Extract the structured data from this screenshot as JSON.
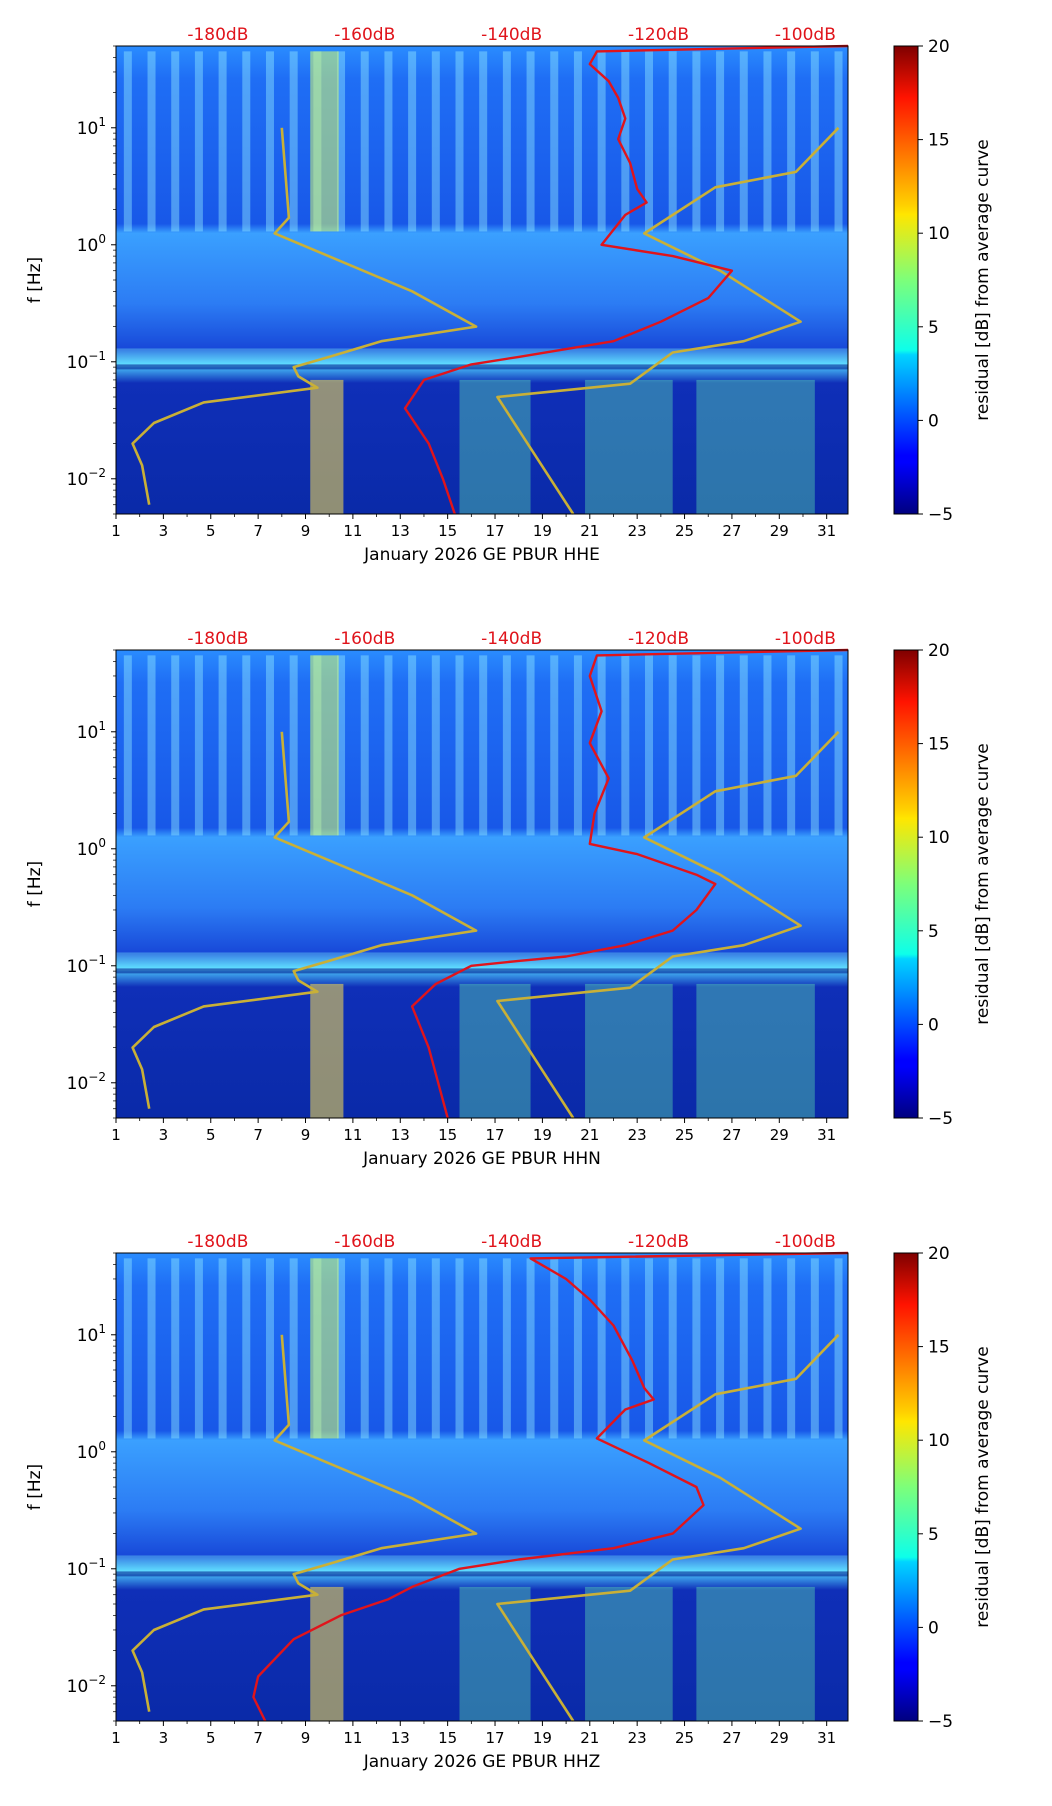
{
  "chart_data": [
    {
      "type": "heatmap",
      "title": "",
      "xlabel": "January 2026 GE PBUR  HHE",
      "ylabel": "f [Hz]",
      "x_ticks": [
        "1",
        "3",
        "5",
        "7",
        "9",
        "11",
        "13",
        "15",
        "17",
        "19",
        "21",
        "23",
        "25",
        "27",
        "29",
        "31"
      ],
      "x_range": [
        1,
        31.9
      ],
      "y_scale": "log",
      "y_range": [
        0.005,
        50
      ],
      "y_ticks": [
        {
          "value": 0.01,
          "base": "10",
          "exp": "−2"
        },
        {
          "value": 0.1,
          "base": "10",
          "exp": "−1"
        },
        {
          "value": 1,
          "base": "10",
          "exp": "0"
        },
        {
          "value": 10,
          "base": "10",
          "exp": "1"
        }
      ],
      "top_labels": [
        "-180dB",
        "-160dB",
        "-140dB",
        "-120dB",
        "-100dB"
      ],
      "top_label_days": [
        5.3,
        11.5,
        17.7,
        23.9,
        30.1
      ],
      "colorbar": {
        "label": "residual [dB] from average curve",
        "ticks": [
          "20",
          "15",
          "10",
          "5",
          "0",
          "−5"
        ],
        "range": [
          -5,
          20
        ]
      },
      "series": [
        {
          "name": "noise-model-curve",
          "color": "#c9b037",
          "points": [
            [
              8.0,
              10
            ],
            [
              8.3,
              1.7
            ],
            [
              7.7,
              1.25
            ],
            [
              13.5,
              0.4
            ],
            [
              16.2,
              0.2
            ],
            [
              12.2,
              0.15
            ],
            [
              10.0,
              0.11
            ],
            [
              8.5,
              0.09
            ],
            [
              8.7,
              0.075
            ],
            [
              9.5,
              0.06
            ],
            [
              4.7,
              0.045
            ],
            [
              2.6,
              0.03
            ],
            [
              1.7,
              0.02
            ],
            [
              2.1,
              0.013
            ],
            [
              2.4,
              0.006
            ]
          ]
        },
        {
          "name": "noise-model-curve-2",
          "color": "#c9b037",
          "points": [
            [
              31.5,
              10
            ],
            [
              29.7,
              4.2
            ],
            [
              26.3,
              3.1
            ],
            [
              23.3,
              1.25
            ],
            [
              26.5,
              0.6
            ],
            [
              29.9,
              0.22
            ],
            [
              27.5,
              0.15
            ],
            [
              24.5,
              0.12
            ],
            [
              22.7,
              0.065
            ],
            [
              17.1,
              0.05
            ],
            [
              20.3,
              0.005
            ]
          ]
        },
        {
          "name": "median-psd-curve",
          "color": "#e0141b",
          "points": [
            [
              31.9,
              50
            ],
            [
              21.3,
              45
            ],
            [
              21.0,
              35
            ],
            [
              21.8,
              25
            ],
            [
              22.2,
              18
            ],
            [
              22.5,
              12
            ],
            [
              22.2,
              8
            ],
            [
              22.7,
              5
            ],
            [
              23.0,
              3
            ],
            [
              23.4,
              2.3
            ],
            [
              22.5,
              1.8
            ],
            [
              21.5,
              1.0
            ],
            [
              24.5,
              0.8
            ],
            [
              27.0,
              0.6
            ],
            [
              26.0,
              0.35
            ],
            [
              24.0,
              0.22
            ],
            [
              22.0,
              0.15
            ],
            [
              18.0,
              0.11
            ],
            [
              16.0,
              0.095
            ],
            [
              14.0,
              0.07
            ],
            [
              13.2,
              0.04
            ],
            [
              14.2,
              0.02
            ],
            [
              14.8,
              0.01
            ],
            [
              15.3,
              0.005
            ]
          ]
        }
      ]
    },
    {
      "type": "heatmap",
      "title": "",
      "xlabel": "January 2026 GE PBUR  HHN",
      "ylabel": "f [Hz]",
      "x_ticks": [
        "1",
        "3",
        "5",
        "7",
        "9",
        "11",
        "13",
        "15",
        "17",
        "19",
        "21",
        "23",
        "25",
        "27",
        "29",
        "31"
      ],
      "x_range": [
        1,
        31.9
      ],
      "y_scale": "log",
      "y_range": [
        0.005,
        50
      ],
      "y_ticks": [
        {
          "value": 0.01,
          "base": "10",
          "exp": "−2"
        },
        {
          "value": 0.1,
          "base": "10",
          "exp": "−1"
        },
        {
          "value": 1,
          "base": "10",
          "exp": "0"
        },
        {
          "value": 10,
          "base": "10",
          "exp": "1"
        }
      ],
      "top_labels": [
        "-180dB",
        "-160dB",
        "-140dB",
        "-120dB",
        "-100dB"
      ],
      "top_label_days": [
        5.3,
        11.5,
        17.7,
        23.9,
        30.1
      ],
      "colorbar": {
        "label": "residual [dB] from average curve",
        "ticks": [
          "20",
          "15",
          "10",
          "5",
          "0",
          "−5"
        ],
        "range": [
          -5,
          20
        ]
      },
      "series": [
        {
          "name": "noise-model-curve",
          "color": "#c9b037",
          "points": [
            [
              8.0,
              10
            ],
            [
              8.3,
              1.7
            ],
            [
              7.7,
              1.25
            ],
            [
              13.5,
              0.4
            ],
            [
              16.2,
              0.2
            ],
            [
              12.2,
              0.15
            ],
            [
              10.0,
              0.11
            ],
            [
              8.5,
              0.09
            ],
            [
              8.7,
              0.075
            ],
            [
              9.5,
              0.06
            ],
            [
              4.7,
              0.045
            ],
            [
              2.6,
              0.03
            ],
            [
              1.7,
              0.02
            ],
            [
              2.1,
              0.013
            ],
            [
              2.4,
              0.006
            ]
          ]
        },
        {
          "name": "noise-model-curve-2",
          "color": "#c9b037",
          "points": [
            [
              31.5,
              10
            ],
            [
              29.7,
              4.2
            ],
            [
              26.3,
              3.1
            ],
            [
              23.3,
              1.25
            ],
            [
              26.5,
              0.6
            ],
            [
              29.9,
              0.22
            ],
            [
              27.5,
              0.15
            ],
            [
              24.5,
              0.12
            ],
            [
              22.7,
              0.065
            ],
            [
              17.1,
              0.05
            ],
            [
              20.3,
              0.005
            ]
          ]
        },
        {
          "name": "median-psd-curve",
          "color": "#e0141b",
          "points": [
            [
              31.9,
              50
            ],
            [
              21.3,
              45
            ],
            [
              21.0,
              30
            ],
            [
              21.5,
              15
            ],
            [
              21.0,
              8
            ],
            [
              21.8,
              4
            ],
            [
              21.2,
              2
            ],
            [
              21.0,
              1.1
            ],
            [
              23.0,
              0.9
            ],
            [
              25.5,
              0.6
            ],
            [
              26.3,
              0.5
            ],
            [
              25.5,
              0.3
            ],
            [
              24.5,
              0.2
            ],
            [
              22.5,
              0.15
            ],
            [
              20.0,
              0.12
            ],
            [
              18.0,
              0.11
            ],
            [
              16.0,
              0.1
            ],
            [
              14.5,
              0.07
            ],
            [
              13.5,
              0.045
            ],
            [
              14.2,
              0.02
            ],
            [
              14.6,
              0.01
            ],
            [
              15.0,
              0.005
            ]
          ]
        }
      ]
    },
    {
      "type": "heatmap",
      "title": "",
      "xlabel": "January 2026 GE PBUR  HHZ",
      "ylabel": "f [Hz]",
      "x_ticks": [
        "1",
        "3",
        "5",
        "7",
        "9",
        "11",
        "13",
        "15",
        "17",
        "19",
        "21",
        "23",
        "25",
        "27",
        "29",
        "31"
      ],
      "x_range": [
        1,
        31.9
      ],
      "y_scale": "log",
      "y_range": [
        0.005,
        50
      ],
      "y_ticks": [
        {
          "value": 0.01,
          "base": "10",
          "exp": "−2"
        },
        {
          "value": 0.1,
          "base": "10",
          "exp": "−1"
        },
        {
          "value": 1,
          "base": "10",
          "exp": "0"
        },
        {
          "value": 10,
          "base": "10",
          "exp": "1"
        }
      ],
      "top_labels": [
        "-180dB",
        "-160dB",
        "-140dB",
        "-120dB",
        "-100dB"
      ],
      "top_label_days": [
        5.3,
        11.5,
        17.7,
        23.9,
        30.1
      ],
      "colorbar": {
        "label": "residual [dB] from average curve",
        "ticks": [
          "20",
          "15",
          "10",
          "5",
          "0",
          "−5"
        ],
        "range": [
          -5,
          20
        ]
      },
      "series": [
        {
          "name": "noise-model-curve",
          "color": "#c9b037",
          "points": [
            [
              8.0,
              10
            ],
            [
              8.3,
              1.7
            ],
            [
              7.7,
              1.25
            ],
            [
              13.5,
              0.4
            ],
            [
              16.2,
              0.2
            ],
            [
              12.2,
              0.15
            ],
            [
              10.0,
              0.11
            ],
            [
              8.5,
              0.09
            ],
            [
              8.7,
              0.075
            ],
            [
              9.5,
              0.06
            ],
            [
              4.7,
              0.045
            ],
            [
              2.6,
              0.03
            ],
            [
              1.7,
              0.02
            ],
            [
              2.1,
              0.013
            ],
            [
              2.4,
              0.006
            ]
          ]
        },
        {
          "name": "noise-model-curve-2",
          "color": "#c9b037",
          "points": [
            [
              31.5,
              10
            ],
            [
              29.7,
              4.2
            ],
            [
              26.3,
              3.1
            ],
            [
              23.3,
              1.25
            ],
            [
              26.5,
              0.6
            ],
            [
              29.9,
              0.22
            ],
            [
              27.5,
              0.15
            ],
            [
              24.5,
              0.12
            ],
            [
              22.7,
              0.065
            ],
            [
              17.1,
              0.05
            ],
            [
              20.3,
              0.005
            ]
          ]
        },
        {
          "name": "median-psd-curve",
          "color": "#e0141b",
          "points": [
            [
              31.9,
              50
            ],
            [
              18.5,
              45
            ],
            [
              20.0,
              30
            ],
            [
              21.0,
              20
            ],
            [
              22.0,
              12
            ],
            [
              22.8,
              6
            ],
            [
              23.3,
              3.5
            ],
            [
              23.7,
              2.8
            ],
            [
              22.5,
              2.3
            ],
            [
              21.3,
              1.3
            ],
            [
              23.5,
              0.8
            ],
            [
              25.5,
              0.5
            ],
            [
              25.8,
              0.35
            ],
            [
              24.5,
              0.2
            ],
            [
              22.0,
              0.15
            ],
            [
              18.0,
              0.12
            ],
            [
              15.5,
              0.1
            ],
            [
              13.5,
              0.07
            ],
            [
              12.5,
              0.055
            ],
            [
              10.5,
              0.04
            ],
            [
              8.5,
              0.025
            ],
            [
              7.0,
              0.012
            ],
            [
              6.8,
              0.008
            ],
            [
              7.3,
              0.005
            ]
          ]
        }
      ]
    }
  ]
}
